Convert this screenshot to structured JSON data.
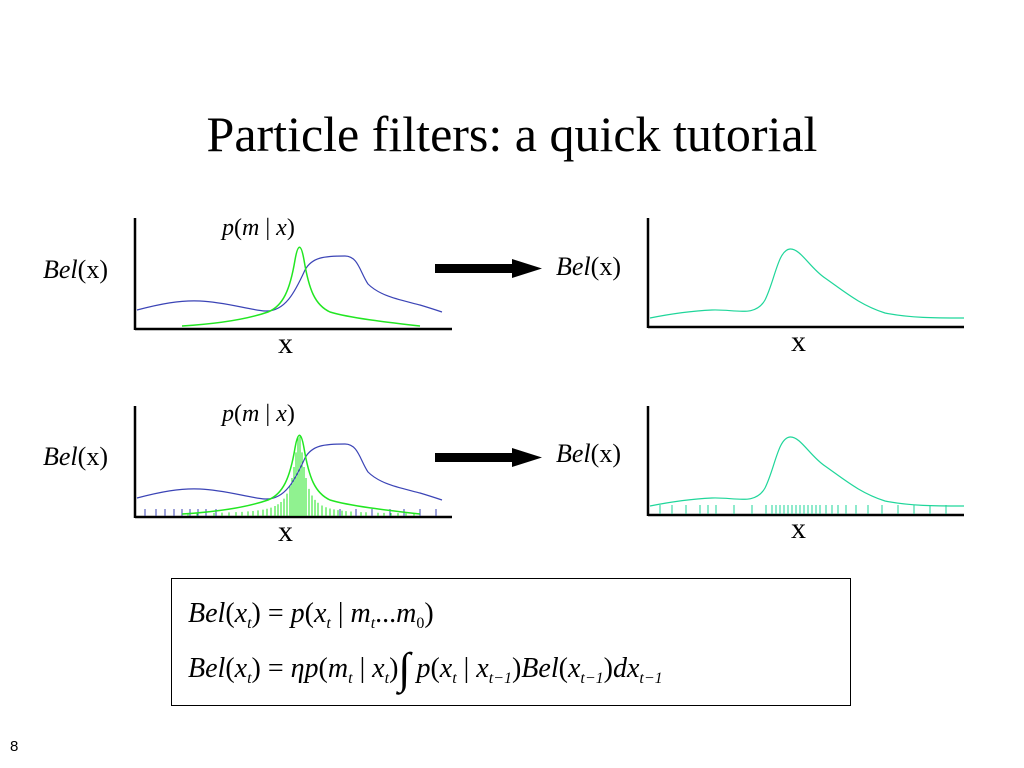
{
  "slide": {
    "title": "Particle filters: a quick tutorial",
    "number": "8"
  },
  "labels": {
    "bel_italic": "Bel",
    "bel_arg": "(x)",
    "x_axis": "x",
    "likelihood": {
      "p": "p",
      "open": "(",
      "m": "m",
      "bar": " | ",
      "x": "x",
      "close": ")"
    }
  },
  "colors": {
    "prior_curve": "#3b44b6",
    "likelihood_curve": "#22e622",
    "posterior_curve": "#1fd69a",
    "axis": "#000000",
    "arrow": "#000000"
  },
  "formulas": {
    "line1": {
      "lhs_bel": "Bel",
      "lhs_arg_open": "(",
      "lhs_x": "x",
      "lhs_sub": "t",
      "lhs_arg_close": ")",
      "eq": " = ",
      "p": "p",
      "open": "(",
      "x": "x",
      "x_sub": "t",
      "bar": " | ",
      "m": "m",
      "m_sub": "t",
      "dots": "...",
      "m0": "m",
      "m0_sub": "0",
      "close": ")"
    },
    "line2": {
      "lhs_bel": "Bel",
      "lhs_open": "(",
      "lhs_x": "x",
      "lhs_sub": "t",
      "lhs_close": ")",
      "eq": " = ",
      "eta": "η",
      "p1": "p",
      "open1": "(",
      "m": "m",
      "m_sub": "t",
      "bar1": " | ",
      "x1": "x",
      "x1_sub": "t",
      "close1": ")",
      "integral": "∫",
      "p2": "p",
      "open2": "(",
      "x2": "x",
      "x2_sub": "t",
      "bar2": " | ",
      "x3": "x",
      "x3_sub": "t−1",
      "close2": ")",
      "bel": "Bel",
      "open3": "(",
      "x4": "x",
      "x4_sub": "t−1",
      "close3": ")",
      "dx": "dx",
      "dx_sub": "t−1"
    }
  }
}
